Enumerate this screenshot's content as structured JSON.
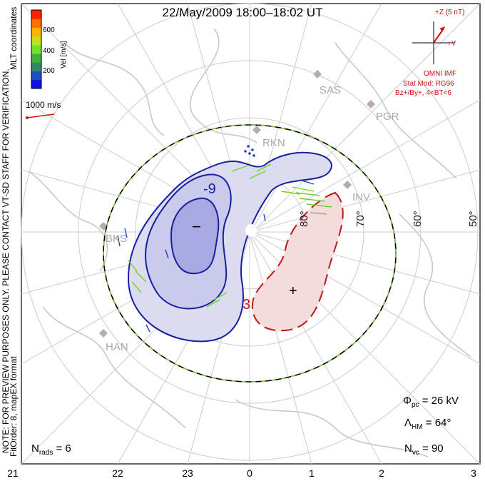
{
  "title": "22/May/2009 18:00–18:02 UT",
  "left_notes": {
    "mlt": "MLT coordinates",
    "preview": "NOTE: FOR PREVIEW PURPOSES ONLY. PLEASE CONTACT VT-SD STAFF FOR VERIFICATION.",
    "fit": "FitOrder: 8, mapEX format"
  },
  "colorbar": {
    "label": "Vel [m/s]",
    "ticks": [
      "600",
      "400",
      "200"
    ],
    "colors": [
      "#1010e0",
      "#2050c0",
      "#308868",
      "#40b040",
      "#70e030",
      "#c0e020",
      "#ffb000",
      "#ff7000",
      "#ff2000"
    ]
  },
  "ref_vector": "1000 m/s",
  "imf": {
    "z_label": "+Z (5 nT)",
    "y_label": "+Y",
    "lines": [
      "OMNI IMF",
      "Stat Mod: RG96",
      "Bz+/By+, 4<BT<6"
    ]
  },
  "contours": {
    "negative_label": "-9",
    "positive_label": "3",
    "minus_symbol": "−",
    "plus_symbol": "+"
  },
  "lat_labels": [
    "80°",
    "70°",
    "60°",
    "50°"
  ],
  "sites": [
    "SAS",
    "PGR",
    "RKN",
    "INV",
    "BKS",
    "HAN"
  ],
  "stats": {
    "phi_pc": "26 kV",
    "lambda_hm": "64°",
    "n_vc": "90",
    "n_rads": "6"
  },
  "mlt_ticks": [
    "21",
    "22",
    "23",
    "0",
    "1",
    "2",
    "3"
  ]
}
